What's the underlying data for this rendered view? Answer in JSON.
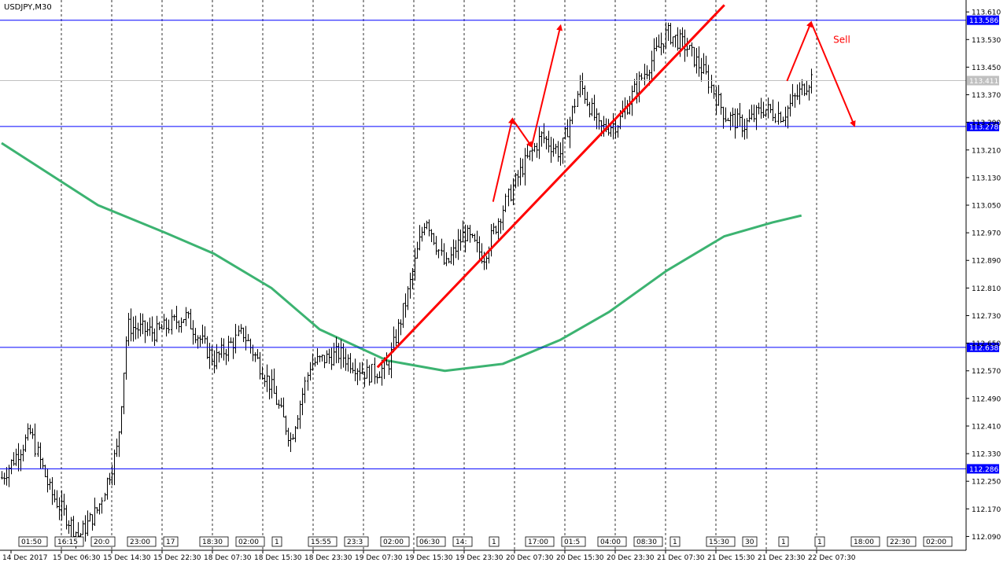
{
  "chart_data": {
    "type": "candlestick",
    "symbol_timeframe": "USDJPY,M30",
    "y_range": [
      112.05,
      113.64
    ],
    "y_ticks": [
      "113.610",
      "113.530",
      "113.450",
      "113.370",
      "113.290",
      "113.210",
      "113.130",
      "113.050",
      "112.970",
      "112.890",
      "112.810",
      "112.730",
      "112.650",
      "112.570",
      "112.490",
      "112.410",
      "112.330",
      "112.250",
      "112.170",
      "112.090"
    ],
    "x_labels": [
      "14 Dec 2017",
      "15 Dec 06:30",
      "15 Dec 14:30",
      "15 Dec 22:30",
      "18 Dec 07:30",
      "18 Dec 15:30",
      "18 Dec 23:30",
      "19 Dec 07:30",
      "19 Dec 15:30",
      "19 Dec 23:30",
      "20 Dec 07:30",
      "20 Dec 15:30",
      "20 Dec 23:30",
      "21 Dec 07:30",
      "21 Dec 15:30",
      "21 Dec 23:30",
      "22 Dec 07:30"
    ],
    "horizontal_levels": [
      {
        "label": "113.586",
        "value": 113.586
      },
      {
        "label": "113.278",
        "value": 113.278
      },
      {
        "label": "112.638",
        "value": 112.638
      },
      {
        "label": "112.286",
        "value": 112.286
      }
    ],
    "current_price": {
      "label": "113.411",
      "value": 113.411
    },
    "moving_average": {
      "color": "#3cb371",
      "points": [
        [
          0,
          113.23
        ],
        [
          0.1,
          113.05
        ],
        [
          0.17,
          112.97
        ],
        [
          0.22,
          112.91
        ],
        [
          0.28,
          112.81
        ],
        [
          0.33,
          112.69
        ],
        [
          0.4,
          112.6
        ],
        [
          0.46,
          112.57
        ],
        [
          0.52,
          112.59
        ],
        [
          0.58,
          112.66
        ],
        [
          0.63,
          112.74
        ],
        [
          0.69,
          112.86
        ],
        [
          0.75,
          112.96
        ],
        [
          0.8,
          113.0
        ],
        [
          0.83,
          113.02
        ]
      ]
    },
    "price_waypoints": [
      [
        0.0,
        112.26
      ],
      [
        0.03,
        112.39
      ],
      [
        0.05,
        112.22
      ],
      [
        0.08,
        112.09
      ],
      [
        0.1,
        112.17
      ],
      [
        0.12,
        112.35
      ],
      [
        0.13,
        112.7
      ],
      [
        0.16,
        112.68
      ],
      [
        0.19,
        112.73
      ],
      [
        0.22,
        112.6
      ],
      [
        0.25,
        112.68
      ],
      [
        0.28,
        112.52
      ],
      [
        0.3,
        112.37
      ],
      [
        0.32,
        112.59
      ],
      [
        0.35,
        112.62
      ],
      [
        0.38,
        112.56
      ],
      [
        0.4,
        112.58
      ],
      [
        0.42,
        112.78
      ],
      [
        0.44,
        113.02
      ],
      [
        0.46,
        112.87
      ],
      [
        0.48,
        112.97
      ],
      [
        0.5,
        112.9
      ],
      [
        0.52,
        113.04
      ],
      [
        0.54,
        113.16
      ],
      [
        0.56,
        113.25
      ],
      [
        0.58,
        113.2
      ],
      [
        0.6,
        113.4
      ],
      [
        0.62,
        113.27
      ],
      [
        0.64,
        113.29
      ],
      [
        0.66,
        113.4
      ],
      [
        0.69,
        113.55
      ],
      [
        0.71,
        113.51
      ],
      [
        0.73,
        113.43
      ],
      [
        0.75,
        113.31
      ],
      [
        0.77,
        113.28
      ],
      [
        0.79,
        113.33
      ],
      [
        0.81,
        113.31
      ],
      [
        0.82,
        113.35
      ],
      [
        0.84,
        113.42
      ]
    ],
    "annotations": [
      {
        "type": "trendline",
        "color": "#ff0000",
        "from": [
          0.39,
          112.58
        ],
        "to": [
          0.75,
          113.63
        ]
      },
      {
        "type": "arrows",
        "color": "#ff0000",
        "path": [
          [
            0.51,
            113.06
          ],
          [
            0.53,
            113.3
          ],
          [
            0.55,
            113.22
          ],
          [
            0.58,
            113.57
          ]
        ]
      },
      {
        "type": "arrows",
        "color": "#ff0000",
        "path": [
          [
            0.815,
            113.41
          ],
          [
            0.84,
            113.58
          ],
          [
            0.885,
            113.28
          ]
        ]
      },
      {
        "type": "text",
        "text": "Sell",
        "color": "#ff0000",
        "at": [
          0.863,
          113.52
        ]
      }
    ],
    "session_markers": [
      "01:50",
      "16:15",
      "20:0",
      "23:00",
      "17",
      "18:30",
      "02:00",
      "1",
      "15:55",
      "23:3",
      "02:00",
      "06:30",
      "14:",
      "1",
      "17:00",
      "01:5",
      "04:00",
      "08:30",
      "1",
      "15:30",
      "30",
      "1",
      "1",
      "18:00",
      "22:30",
      "02:00"
    ]
  },
  "colors": {
    "level_line": "#0000ff",
    "axis_label_bg": "#0000ff",
    "current_label_bg": "#c0c0c0",
    "grid": "#000000",
    "candles": "#000000"
  }
}
